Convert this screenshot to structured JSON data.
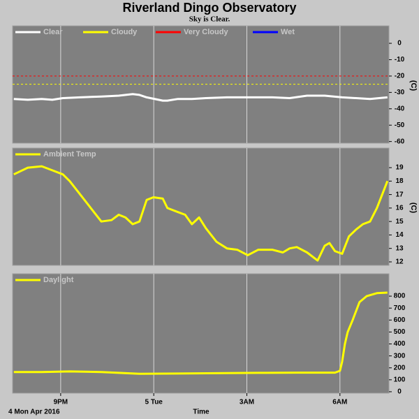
{
  "title": "Riverland Dingo Observatory",
  "subtitle": "Sky is Clear.",
  "date_label": "4 Mon Apr 2016",
  "chart_data": [
    {
      "type": "line",
      "ylabel": "(C)",
      "x": [
        19.49,
        19.94,
        20.39,
        20.73,
        21.07,
        21.63,
        22.31,
        22.87,
        23.32,
        23.54,
        23.77,
        24.29,
        24.44,
        24.78,
        25.23,
        25.68,
        26.36,
        27.03,
        27.82,
        28.38,
        28.94,
        29.51,
        30.07,
        30.52,
        30.97,
        31.53
      ],
      "series": [
        {
          "name": "Clear",
          "color": "#ffffff",
          "values": [
            -34,
            -34.5,
            -34,
            -34.5,
            -33.5,
            -33,
            -32.5,
            -32,
            -31,
            -31.5,
            -33,
            -35,
            -35,
            -34,
            -34,
            -33.5,
            -33,
            -33,
            -33,
            -33.5,
            -32,
            -32,
            -33,
            -33.5,
            -34,
            -33
          ]
        },
        {
          "name": "Cloudy",
          "color": "#ffff00",
          "threshold": -25
        },
        {
          "name": "Very Cloudy",
          "color": "#ff0000",
          "threshold": -20
        },
        {
          "name": "Wet",
          "color": "#0000ff"
        }
      ],
      "ylim": [
        -61,
        9.4
      ],
      "yticks": [
        0,
        -10,
        -20,
        -30,
        -40,
        -50,
        -60
      ],
      "grid": true
    },
    {
      "type": "line",
      "ylabel": "(C)",
      "x": [
        19.49,
        19.94,
        20.39,
        20.73,
        21.07,
        21.29,
        21.63,
        21.97,
        22.31,
        22.64,
        22.87,
        23.09,
        23.32,
        23.54,
        23.77,
        23.99,
        24.29,
        24.44,
        24.78,
        25.01,
        25.23,
        25.46,
        25.68,
        26.02,
        26.36,
        26.69,
        27.03,
        27.37,
        27.82,
        28.16,
        28.38,
        28.61,
        28.94,
        29.28,
        29.51,
        29.66,
        29.84,
        30.07,
        30.29,
        30.52,
        30.74,
        30.97,
        31.19,
        31.53
      ],
      "series": [
        {
          "name": "Ambient Temp",
          "color": "#ffff00",
          "values": [
            18.5,
            19.0,
            19.1,
            18.8,
            18.5,
            18.0,
            17.0,
            16.0,
            15.0,
            15.1,
            15.5,
            15.3,
            14.8,
            15.0,
            16.6,
            16.8,
            16.7,
            16.0,
            15.7,
            15.5,
            14.8,
            15.3,
            14.5,
            13.5,
            13.0,
            12.9,
            12.5,
            12.9,
            12.9,
            12.7,
            13.0,
            13.1,
            12.7,
            12.1,
            13.2,
            13.4,
            12.8,
            12.6,
            13.9,
            14.4,
            14.8,
            15.0,
            16.0,
            18.0
          ]
        }
      ],
      "ylim": [
        11.74,
        20.3
      ],
      "yticks": [
        12,
        13,
        14,
        15,
        16,
        17,
        18,
        19
      ],
      "grid": true
    },
    {
      "type": "line",
      "xlabel": "Time",
      "x": [
        19.49,
        20.39,
        21.29,
        22.31,
        23.54,
        24.78,
        26.02,
        27.37,
        28.61,
        29.84,
        30.0,
        30.07,
        30.16,
        30.25,
        30.41,
        30.63,
        30.86,
        31.19,
        31.53
      ],
      "series": [
        {
          "name": "Daylight",
          "color": "#ffff00",
          "values": [
            165,
            165,
            170,
            165,
            150,
            152,
            155,
            158,
            160,
            160,
            175,
            250,
            400,
            500,
            600,
            750,
            800,
            825,
            830
          ]
        }
      ],
      "ylim": [
        -12,
        970
      ],
      "yticks": [
        0,
        100,
        200,
        300,
        400,
        500,
        600,
        700,
        800
      ],
      "grid": true,
      "xlim": [
        19.45,
        31.58
      ],
      "xticks": [
        {
          "value": 21,
          "label": "9PM"
        },
        {
          "value": 24,
          "label": "5 Tue"
        },
        {
          "value": 27,
          "label": "3AM"
        },
        {
          "value": 30,
          "label": "6AM"
        }
      ]
    }
  ]
}
